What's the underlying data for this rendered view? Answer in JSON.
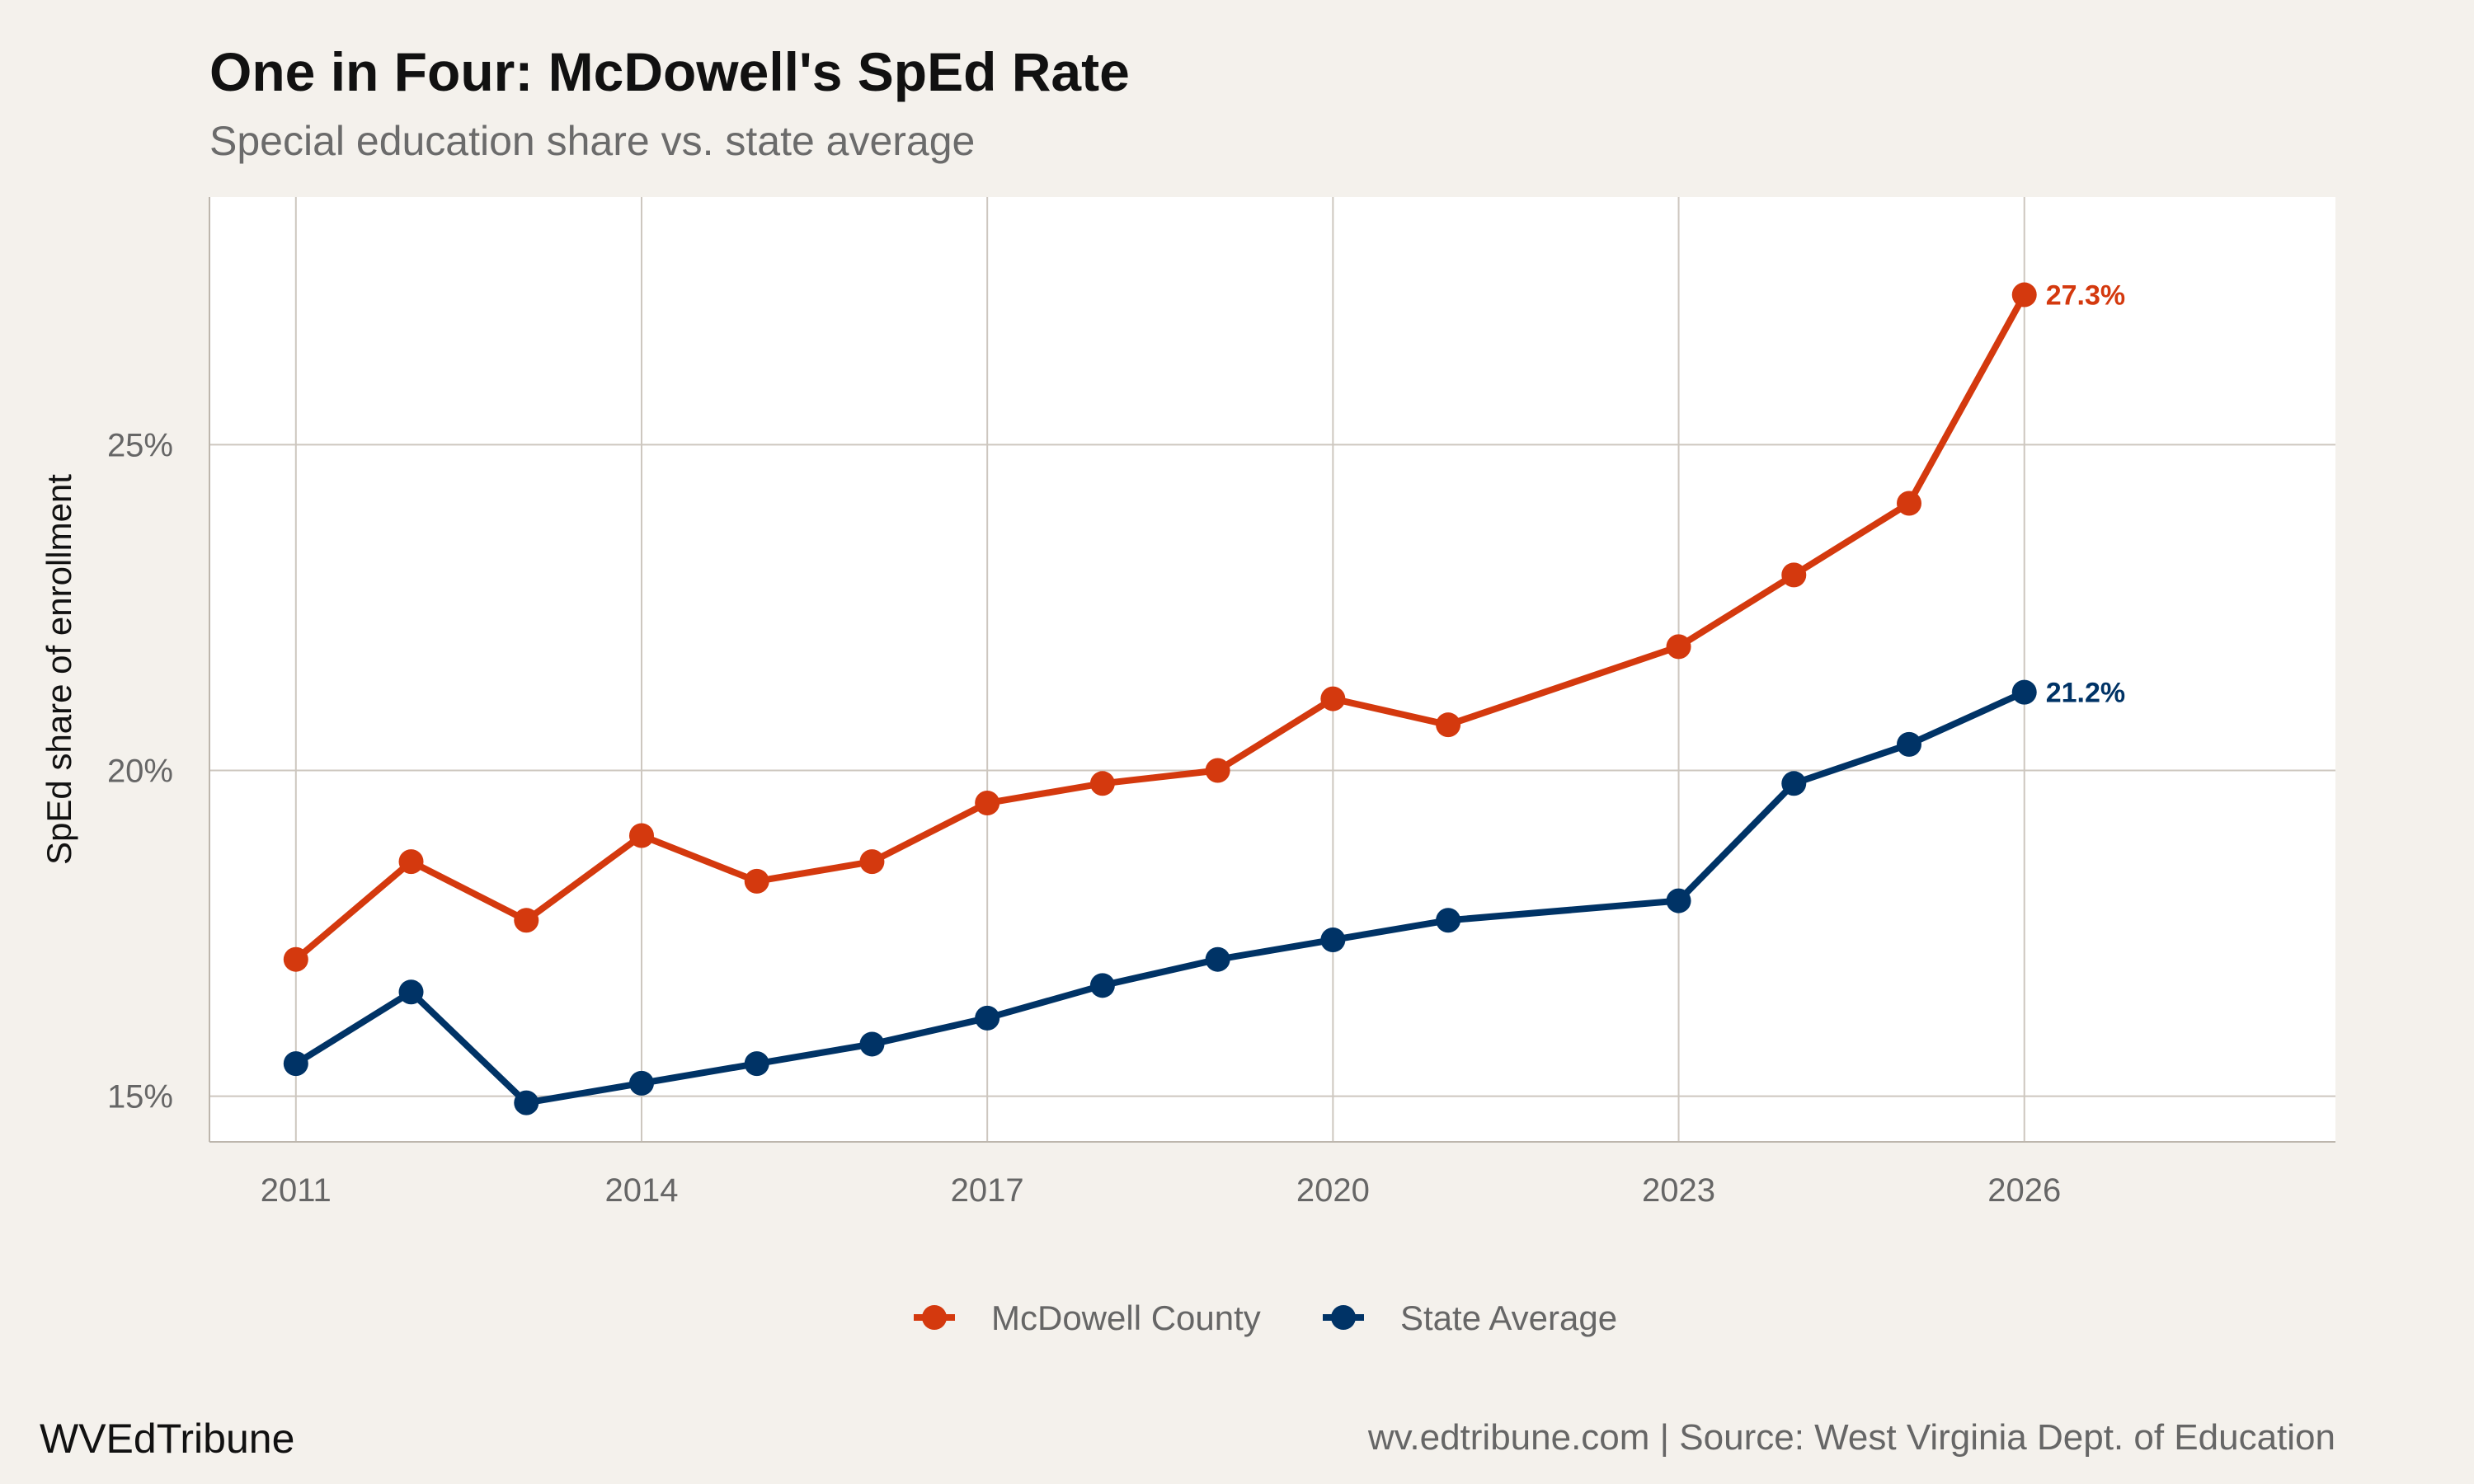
{
  "chart_data": {
    "type": "line",
    "title": "One in Four: McDowell's SpEd Rate",
    "subtitle": "Special education share vs. state average",
    "xlabel": "",
    "ylabel": "SpEd share of enrollment",
    "xlim": [
      2010.25,
      2028.7
    ],
    "ylim": [
      14.3,
      28.8
    ],
    "x_ticks": [
      2011,
      2014,
      2017,
      2020,
      2023,
      2026
    ],
    "y_ticks": [
      15,
      20,
      25
    ],
    "y_tick_labels": [
      "15%",
      "20%",
      "25%"
    ],
    "grid": true,
    "legend_position": "bottom",
    "series": [
      {
        "name": "McDowell County",
        "color": "#D4390E",
        "x": [
          2011,
          2012,
          2013,
          2014,
          2015,
          2016,
          2017,
          2018,
          2019,
          2020,
          2021,
          2023,
          2024,
          2025,
          2026
        ],
        "values": [
          17.1,
          18.6,
          17.7,
          19.0,
          18.3,
          18.6,
          19.5,
          19.8,
          20.0,
          21.1,
          20.7,
          21.9,
          23.0,
          24.1,
          27.3
        ],
        "end_label": "27.3%"
      },
      {
        "name": "State Average",
        "color": "#003366",
        "x": [
          2011,
          2012,
          2013,
          2014,
          2015,
          2016,
          2017,
          2018,
          2019,
          2020,
          2021,
          2023,
          2024,
          2025,
          2026
        ],
        "values": [
          15.5,
          16.6,
          14.9,
          15.2,
          15.5,
          15.8,
          16.2,
          16.7,
          17.1,
          17.4,
          17.7,
          18.0,
          19.8,
          20.4,
          21.2
        ],
        "end_label": "21.2%"
      }
    ]
  },
  "footer": {
    "brand": "WVEdTribune",
    "source": "wv.edtribune.com | Source: West Virginia Dept. of Education"
  }
}
